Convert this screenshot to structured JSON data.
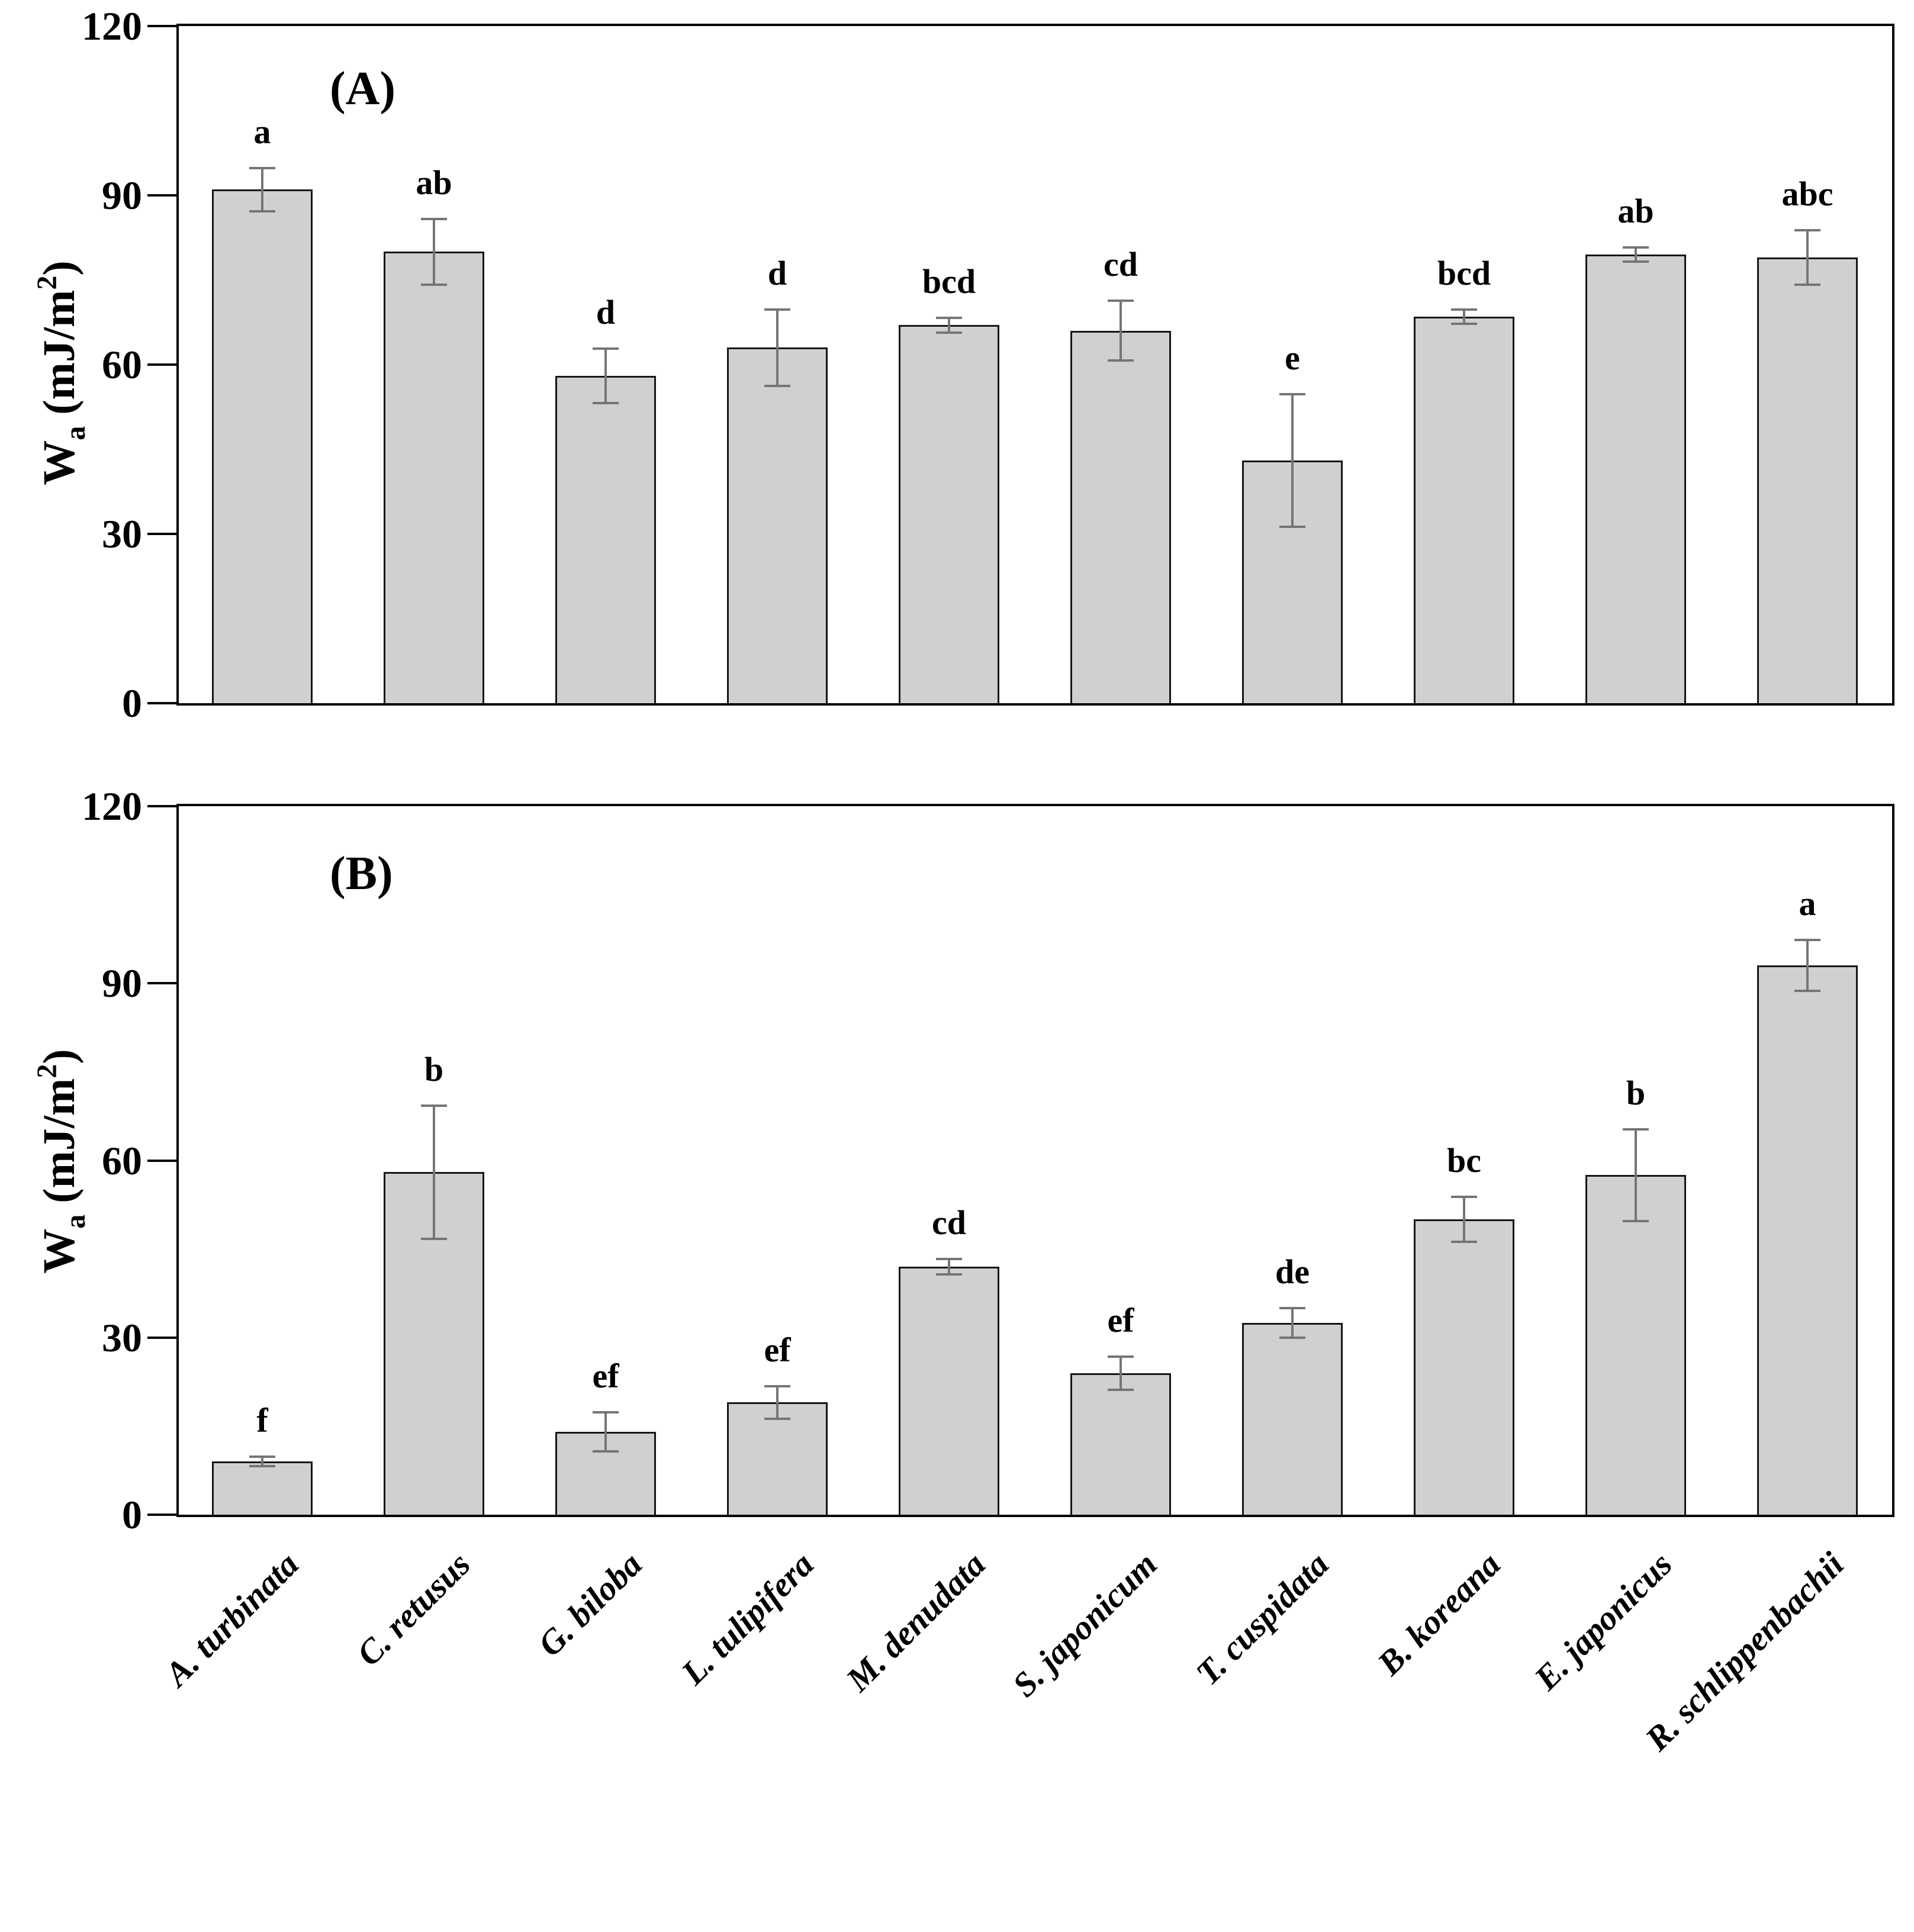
{
  "y_axis_label": {
    "base": "W",
    "sub": "a",
    "mid": " (mJ/m",
    "sup": "2",
    "end": ")"
  },
  "chart_data": [
    {
      "type": "bar",
      "panel": "A",
      "title": "(A)",
      "ylabel": "Wa (mJ/m2)",
      "ylim": [
        0,
        120
      ],
      "yticks": [
        0,
        30,
        60,
        90,
        120
      ],
      "grid": false,
      "bar_color": "#d1d0d1",
      "bar_border_color": "#161616",
      "error_bar_color": "#757575",
      "categories": [
        "A. turbinata",
        "C. retusus",
        "G. biloba",
        "L. tulipifera",
        "M. denudata",
        "S. japonicum",
        "T. cuspidata",
        "B. koreana",
        "E. japonicus",
        "R. schlippenbachii"
      ],
      "values": [
        91,
        80,
        58,
        63,
        67,
        66,
        43,
        68.5,
        79.5,
        79
      ],
      "errors": [
        4,
        6,
        5,
        7,
        1.5,
        5.5,
        12,
        1.5,
        1.5,
        5
      ],
      "sig_letters": [
        "a",
        "ab",
        "d",
        "d",
        "bcd",
        "cd",
        "e",
        "bcd",
        "ab",
        "abc"
      ]
    },
    {
      "type": "bar",
      "panel": "B",
      "title": "(B)",
      "ylabel": "Wa (mJ/m2)",
      "ylim": [
        0,
        120
      ],
      "yticks": [
        0,
        30,
        60,
        90,
        120
      ],
      "grid": false,
      "bar_color": "#d1d0d1",
      "bar_border_color": "#161616",
      "error_bar_color": "#757575",
      "categories": [
        "A. turbinata",
        "C. retusus",
        "G. biloba",
        "L. tulipifera",
        "M. denudata",
        "S. japonicum",
        "T. cuspidata",
        "B. koreana",
        "E. japonicus",
        "R. schlippenbachii"
      ],
      "values": [
        9,
        58,
        14,
        19,
        42,
        24,
        32.5,
        50,
        57.5,
        93
      ],
      "errors": [
        1,
        11.5,
        3.5,
        3,
        1.5,
        3,
        2.7,
        4,
        8,
        4.5
      ],
      "sig_letters": [
        "f",
        "b",
        "ef",
        "ef",
        "cd",
        "ef",
        "de",
        "bc",
        "b",
        "a"
      ]
    }
  ]
}
